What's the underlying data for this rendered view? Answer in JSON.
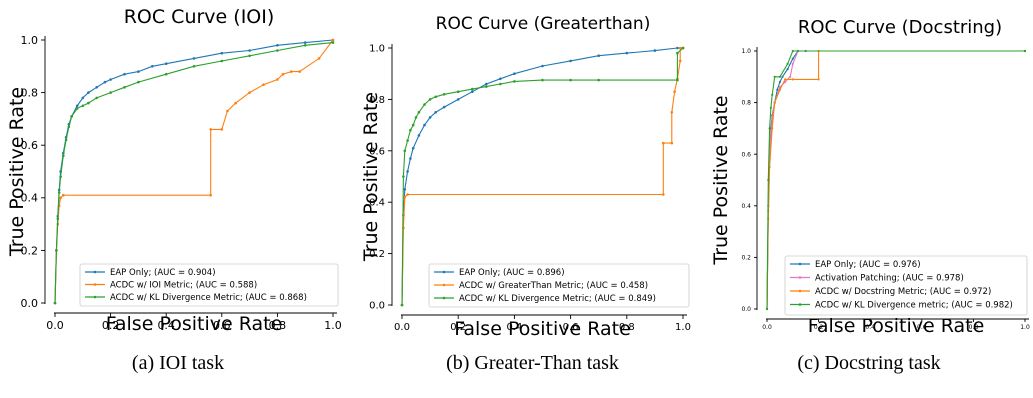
{
  "figure": {
    "captions": [
      "(a) IOI task",
      "(b) Greater-Than task",
      "(c) Docstring task"
    ]
  },
  "colors": {
    "blue": "#1f77b4",
    "orange": "#ff7f0e",
    "green": "#2ca02c",
    "pink": "#e377c2"
  },
  "chart_data": [
    {
      "type": "line",
      "title": "ROC Curve (IOI)",
      "xlabel": "False Positive Rate",
      "ylabel": "True Positive Rate",
      "xlim": [
        0,
        1
      ],
      "ylim": [
        0,
        1
      ],
      "xticks": [
        "0.0",
        "0.2",
        "0.4",
        "0.6",
        "0.8",
        "1.0"
      ],
      "yticks": [
        "0.0",
        "0.2",
        "0.4",
        "0.6",
        "0.8",
        "1.0"
      ],
      "grid": false,
      "legend_position": "lower right",
      "series": [
        {
          "name": "EAP Only; (AUC = 0.904)",
          "color": "#1f77b4",
          "x": [
            0,
            0.005,
            0.01,
            0.015,
            0.02,
            0.03,
            0.04,
            0.05,
            0.06,
            0.08,
            0.1,
            0.12,
            0.15,
            0.18,
            0.2,
            0.25,
            0.3,
            0.35,
            0.4,
            0.5,
            0.6,
            0.7,
            0.8,
            0.9,
            1.0
          ],
          "y": [
            0,
            0.2,
            0.33,
            0.43,
            0.5,
            0.57,
            0.63,
            0.68,
            0.71,
            0.75,
            0.78,
            0.8,
            0.82,
            0.84,
            0.85,
            0.87,
            0.88,
            0.9,
            0.91,
            0.93,
            0.95,
            0.96,
            0.98,
            0.99,
            1.0
          ]
        },
        {
          "name": "ACDC w/ IOI Metric; (AUC = 0.588)",
          "color": "#ff7f0e",
          "x": [
            0,
            0.005,
            0.01,
            0.015,
            0.02,
            0.03,
            0.56,
            0.56,
            0.6,
            0.62,
            0.65,
            0.7,
            0.75,
            0.8,
            0.82,
            0.85,
            0.88,
            0.95,
            1.0
          ],
          "y": [
            0,
            0.2,
            0.3,
            0.37,
            0.4,
            0.41,
            0.41,
            0.66,
            0.66,
            0.73,
            0.76,
            0.8,
            0.83,
            0.85,
            0.87,
            0.88,
            0.88,
            0.93,
            1.0
          ]
        },
        {
          "name": "ACDC w/ KL Divergence Metric; (AUC = 0.868)",
          "color": "#2ca02c",
          "x": [
            0,
            0.005,
            0.01,
            0.015,
            0.02,
            0.03,
            0.04,
            0.05,
            0.06,
            0.08,
            0.1,
            0.12,
            0.15,
            0.2,
            0.25,
            0.3,
            0.4,
            0.5,
            0.6,
            0.7,
            0.8,
            0.9,
            1.0
          ],
          "y": [
            0,
            0.2,
            0.32,
            0.42,
            0.48,
            0.56,
            0.62,
            0.67,
            0.71,
            0.74,
            0.75,
            0.76,
            0.78,
            0.8,
            0.82,
            0.84,
            0.87,
            0.9,
            0.92,
            0.94,
            0.96,
            0.98,
            0.99
          ]
        }
      ]
    },
    {
      "type": "line",
      "title": "ROC Curve (Greaterthan)",
      "xlabel": "False Positive Rate",
      "ylabel": "True Positive Rate",
      "xlim": [
        0,
        1
      ],
      "ylim": [
        0,
        1
      ],
      "xticks": [
        "0.0",
        "0.2",
        "0.4",
        "0.6",
        "0.8",
        "1.0"
      ],
      "yticks": [
        "0.0",
        "0.2",
        "0.4",
        "0.6",
        "0.8",
        "1.0"
      ],
      "grid": false,
      "legend_position": "lower right",
      "series": [
        {
          "name": "EAP Only; (AUC = 0.896)",
          "color": "#1f77b4",
          "x": [
            0,
            0.005,
            0.01,
            0.02,
            0.03,
            0.04,
            0.06,
            0.08,
            0.1,
            0.12,
            0.15,
            0.2,
            0.25,
            0.3,
            0.35,
            0.4,
            0.5,
            0.6,
            0.7,
            0.8,
            0.9,
            0.98,
            1.0
          ],
          "y": [
            0,
            0.35,
            0.45,
            0.52,
            0.57,
            0.61,
            0.66,
            0.7,
            0.73,
            0.75,
            0.77,
            0.8,
            0.83,
            0.86,
            0.88,
            0.9,
            0.93,
            0.95,
            0.97,
            0.98,
            0.99,
            1.0,
            1.0
          ]
        },
        {
          "name": "ACDC w/ GreaterThan Metric; (AUC = 0.458)",
          "color": "#ff7f0e",
          "x": [
            0,
            0.005,
            0.01,
            0.02,
            0.93,
            0.93,
            0.96,
            0.96,
            0.97,
            0.98,
            0.99,
            0.99,
            1.0
          ],
          "y": [
            0,
            0.3,
            0.42,
            0.43,
            0.43,
            0.63,
            0.63,
            0.75,
            0.83,
            0.88,
            0.95,
            1.0,
            1.0
          ]
        },
        {
          "name": "ACDC w/ KL Divergence Metric; (AUC = 0.849)",
          "color": "#2ca02c",
          "x": [
            0,
            0.005,
            0.01,
            0.02,
            0.03,
            0.04,
            0.05,
            0.06,
            0.08,
            0.1,
            0.12,
            0.15,
            0.2,
            0.25,
            0.3,
            0.35,
            0.4,
            0.5,
            0.6,
            0.7,
            0.98,
            0.98,
            1.0
          ],
          "y": [
            0,
            0.5,
            0.6,
            0.64,
            0.68,
            0.7,
            0.73,
            0.75,
            0.78,
            0.8,
            0.81,
            0.82,
            0.83,
            0.84,
            0.85,
            0.86,
            0.87,
            0.875,
            0.875,
            0.875,
            0.875,
            0.98,
            1.0
          ]
        }
      ]
    },
    {
      "type": "line",
      "title": "ROC Curve (Docstring)",
      "xlabel": "False Positive Rate",
      "ylabel": "True Positive Rate",
      "xlim": [
        0,
        1
      ],
      "ylim": [
        0,
        1
      ],
      "xticks": [
        "0.0",
        "0.2",
        "0.4",
        "0.6",
        "0.8",
        "1.0"
      ],
      "yticks": [
        "0.0",
        "0.2",
        "0.4",
        "0.6",
        "0.8",
        "1.0"
      ],
      "grid": false,
      "legend_position": "lower right",
      "series": [
        {
          "name": "EAP Only; (AUC = 0.976)",
          "color": "#1f77b4",
          "x": [
            0,
            0.005,
            0.01,
            0.015,
            0.02,
            0.03,
            0.04,
            0.05,
            0.06,
            0.08,
            0.1,
            0.12,
            0.15,
            1.0
          ],
          "y": [
            0,
            0.4,
            0.6,
            0.7,
            0.75,
            0.8,
            0.85,
            0.88,
            0.9,
            0.93,
            0.97,
            1.0,
            1.0,
            1.0
          ]
        },
        {
          "name": "Activation Patching; (AUC = 0.978)",
          "color": "#e377c2",
          "x": [
            0,
            0.005,
            0.01,
            0.015,
            0.02,
            0.03,
            0.05,
            0.07,
            0.09,
            0.1,
            0.12,
            1.0
          ],
          "y": [
            0,
            0.38,
            0.58,
            0.68,
            0.74,
            0.8,
            0.86,
            0.88,
            0.9,
            0.95,
            1.0,
            1.0
          ]
        },
        {
          "name": "ACDC w/ Docstring Metric; (AUC = 0.972)",
          "color": "#ff7f0e",
          "x": [
            0,
            0.005,
            0.01,
            0.02,
            0.03,
            0.05,
            0.07,
            0.1,
            0.2,
            0.2,
            1.0
          ],
          "y": [
            0,
            0.35,
            0.55,
            0.7,
            0.8,
            0.85,
            0.89,
            0.89,
            0.89,
            1.0,
            1.0
          ]
        },
        {
          "name": "ACDC w/ KL Divergence metric; (AUC = 0.982)",
          "color": "#2ca02c",
          "x": [
            0,
            0.005,
            0.01,
            0.015,
            0.02,
            0.03,
            0.05,
            0.08,
            0.1,
            0.12,
            1.0
          ],
          "y": [
            0,
            0.5,
            0.7,
            0.78,
            0.83,
            0.9,
            0.9,
            0.95,
            1.0,
            1.0,
            1.0
          ]
        }
      ]
    }
  ]
}
